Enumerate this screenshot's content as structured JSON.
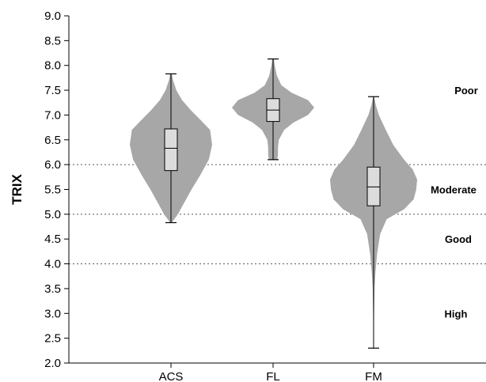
{
  "chart_data": {
    "type": "violin",
    "ylabel": "TRIX",
    "ylim": [
      2.0,
      9.0
    ],
    "yticks": [
      "2.0",
      "2.5",
      "3.0",
      "3.5",
      "4.0",
      "4.5",
      "5.0",
      "5.5",
      "6.0",
      "6.5",
      "7.0",
      "7.5",
      "8.0",
      "8.5",
      "9.0"
    ],
    "categories": [
      "ACS",
      "FL",
      "FM"
    ],
    "thresholds": [
      4.0,
      5.0,
      6.0
    ],
    "bands": [
      {
        "label": "Poor",
        "y": 7.5
      },
      {
        "label": "Moderate",
        "y": 5.5
      },
      {
        "label": "Good",
        "y": 4.5
      },
      {
        "label": "High",
        "y": 3.0
      }
    ],
    "series": [
      {
        "category": "ACS",
        "min": 4.83,
        "q1": 5.88,
        "median": 6.33,
        "q3": 6.72,
        "max": 7.83,
        "density": [
          [
            4.83,
            0.02
          ],
          [
            4.9,
            0.08
          ],
          [
            5.0,
            0.17
          ],
          [
            5.2,
            0.3
          ],
          [
            5.5,
            0.5
          ],
          [
            5.8,
            0.72
          ],
          [
            6.1,
            0.92
          ],
          [
            6.4,
            1.0
          ],
          [
            6.7,
            0.95
          ],
          [
            6.9,
            0.72
          ],
          [
            7.1,
            0.48
          ],
          [
            7.3,
            0.27
          ],
          [
            7.5,
            0.13
          ],
          [
            7.7,
            0.05
          ],
          [
            7.83,
            0.02
          ]
        ]
      },
      {
        "category": "FL",
        "min": 6.1,
        "q1": 6.87,
        "median": 7.1,
        "q3": 7.33,
        "max": 8.13,
        "density": [
          [
            6.1,
            0.1
          ],
          [
            6.2,
            0.12
          ],
          [
            6.35,
            0.12
          ],
          [
            6.5,
            0.14
          ],
          [
            6.7,
            0.27
          ],
          [
            6.85,
            0.5
          ],
          [
            7.0,
            0.85
          ],
          [
            7.15,
            1.0
          ],
          [
            7.3,
            0.85
          ],
          [
            7.45,
            0.45
          ],
          [
            7.6,
            0.2
          ],
          [
            7.8,
            0.09
          ],
          [
            8.0,
            0.04
          ],
          [
            8.13,
            0.02
          ]
        ]
      },
      {
        "category": "FM",
        "min": 2.3,
        "q1": 5.17,
        "median": 5.55,
        "q3": 5.95,
        "max": 7.37,
        "density": [
          [
            2.3,
            0.005
          ],
          [
            3.0,
            0.01
          ],
          [
            3.5,
            0.02
          ],
          [
            3.8,
            0.04
          ],
          [
            4.2,
            0.08
          ],
          [
            4.6,
            0.15
          ],
          [
            4.9,
            0.3
          ],
          [
            5.1,
            0.7
          ],
          [
            5.3,
            0.92
          ],
          [
            5.5,
            0.98
          ],
          [
            5.7,
            1.0
          ],
          [
            5.9,
            0.9
          ],
          [
            6.1,
            0.7
          ],
          [
            6.4,
            0.45
          ],
          [
            6.7,
            0.28
          ],
          [
            7.0,
            0.12
          ],
          [
            7.2,
            0.05
          ],
          [
            7.37,
            0.01
          ]
        ]
      }
    ],
    "colors": {
      "violin_fill": "#a7a7a7",
      "box_fill": "#dcdcdc",
      "line": "#000000",
      "threshold": "#555555"
    }
  }
}
